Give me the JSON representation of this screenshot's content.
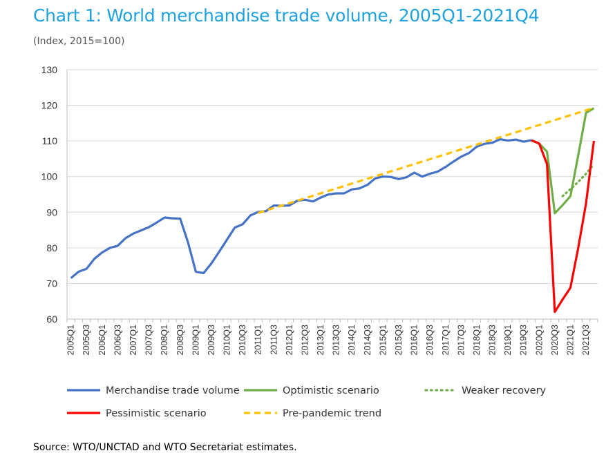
{
  "title": "Chart 1: World merchandise trade volume, 2005Q1-2021Q4",
  "subtitle": "(Index, 2015=100)",
  "source": "Source: WTO/UNCTAD and WTO Secretariat estimates.",
  "colors": {
    "merchandise": "#4472c4",
    "optimistic": "#70ad47",
    "weaker": "#70ad47",
    "pessimistic": "#ff0000",
    "trend": "#ffc000",
    "grid": "#d9d9d9",
    "axis": "#bfbfbf"
  },
  "chart_data": {
    "type": "line",
    "ylim": [
      60,
      130
    ],
    "yticks": [
      60,
      70,
      80,
      90,
      100,
      110,
      120,
      130
    ],
    "x": [
      "2005Q1",
      "2005Q2",
      "2005Q3",
      "2005Q4",
      "2006Q1",
      "2006Q2",
      "2006Q3",
      "2006Q4",
      "2007Q1",
      "2007Q2",
      "2007Q3",
      "2007Q4",
      "2008Q1",
      "2008Q2",
      "2008Q3",
      "2008Q4",
      "2009Q1",
      "2009Q2",
      "2009Q3",
      "2009Q4",
      "2010Q1",
      "2010Q2",
      "2010Q3",
      "2010Q4",
      "2011Q1",
      "2011Q2",
      "2011Q3",
      "2011Q4",
      "2012Q1",
      "2012Q2",
      "2012Q3",
      "2012Q4",
      "2013Q1",
      "2013Q2",
      "2013Q3",
      "2013Q4",
      "2014Q1",
      "2014Q2",
      "2014Q3",
      "2014Q4",
      "2015Q1",
      "2015Q2",
      "2015Q3",
      "2015Q4",
      "2016Q1",
      "2016Q2",
      "2016Q3",
      "2016Q4",
      "2017Q1",
      "2017Q2",
      "2017Q3",
      "2017Q4",
      "2018Q1",
      "2018Q2",
      "2018Q3",
      "2018Q4",
      "2019Q1",
      "2019Q2",
      "2019Q3",
      "2019Q4",
      "2020Q1",
      "2020Q2",
      "2020Q3",
      "2020Q4",
      "2021Q1",
      "2021Q2",
      "2021Q3",
      "2021Q4"
    ],
    "xtick_labels": [
      "2005Q1",
      "2005Q3",
      "2006Q1",
      "2006Q3",
      "2007Q1",
      "2007Q3",
      "2008Q1",
      "2008Q3",
      "2009Q1",
      "2009Q3",
      "2010Q1",
      "2010Q3",
      "2011Q1",
      "2011Q3",
      "2012Q1",
      "2012Q3",
      "2013Q1",
      "2013Q3",
      "2014Q1",
      "2014Q3",
      "2015Q1",
      "2015Q3",
      "2016Q1",
      "2016Q3",
      "2017Q1",
      "2017Q3",
      "2018Q1",
      "2018Q3",
      "2019Q1",
      "2019Q3",
      "2020Q1",
      "2020Q3",
      "2021Q1",
      "2021Q3"
    ],
    "series": [
      {
        "name": "Merchandise trade volume",
        "style": "solid",
        "x": [
          "2005Q1",
          "2005Q2",
          "2005Q3",
          "2005Q4",
          "2006Q1",
          "2006Q2",
          "2006Q3",
          "2006Q4",
          "2007Q1",
          "2007Q2",
          "2007Q3",
          "2007Q4",
          "2008Q1",
          "2008Q2",
          "2008Q3",
          "2008Q4",
          "2009Q1",
          "2009Q2",
          "2009Q3",
          "2009Q4",
          "2010Q1",
          "2010Q2",
          "2010Q3",
          "2010Q4",
          "2011Q1",
          "2011Q2",
          "2011Q3",
          "2011Q4",
          "2012Q1",
          "2012Q2",
          "2012Q3",
          "2012Q4",
          "2013Q1",
          "2013Q2",
          "2013Q3",
          "2013Q4",
          "2014Q1",
          "2014Q2",
          "2014Q3",
          "2014Q4",
          "2015Q1",
          "2015Q2",
          "2015Q3",
          "2015Q4",
          "2016Q1",
          "2016Q2",
          "2016Q3",
          "2016Q4",
          "2017Q1",
          "2017Q2",
          "2017Q3",
          "2017Q4",
          "2018Q1",
          "2018Q2",
          "2018Q3",
          "2018Q4",
          "2019Q1",
          "2019Q2",
          "2019Q3",
          "2019Q4"
        ],
        "values": [
          71.5,
          73.3,
          74.1,
          76.9,
          78.7,
          80.0,
          80.6,
          82.7,
          84.0,
          84.9,
          85.8,
          87.1,
          88.5,
          88.3,
          88.2,
          81.5,
          73.3,
          72.9,
          75.6,
          78.9,
          82.3,
          85.7,
          86.6,
          89.1,
          90.1,
          90.3,
          91.9,
          91.8,
          91.9,
          93.2,
          93.5,
          93.0,
          94.1,
          95.0,
          95.3,
          95.3,
          96.4,
          96.7,
          97.7,
          99.5,
          100.0,
          99.9,
          99.3,
          99.8,
          101.1,
          100.0,
          100.8,
          101.4,
          102.7,
          104.2,
          105.6,
          106.6,
          108.4,
          109.2,
          109.5,
          110.5,
          110.1,
          110.4,
          109.8,
          110.2
        ]
      },
      {
        "name": "Optimistic scenario",
        "style": "solid",
        "x": [
          "2019Q4",
          "2020Q1",
          "2020Q2",
          "2020Q3",
          "2020Q4",
          "2021Q1",
          "2021Q2",
          "2021Q3",
          "2021Q4"
        ],
        "values": [
          110.2,
          109.3,
          107.0,
          89.7,
          92.0,
          94.5,
          106.0,
          117.9,
          119.2
        ]
      },
      {
        "name": "Weaker recovery",
        "style": "dotted",
        "x": [
          "2020Q4",
          "2021Q1",
          "2021Q2",
          "2021Q3",
          "2021Q4"
        ],
        "values": [
          94.5,
          96.5,
          98.5,
          100.8,
          103.5
        ]
      },
      {
        "name": "Pessimistic scenario",
        "style": "solid",
        "x": [
          "2019Q4",
          "2020Q1",
          "2020Q2",
          "2020Q3",
          "2020Q4",
          "2021Q1",
          "2021Q2",
          "2021Q3",
          "2021Q4"
        ],
        "values": [
          110.2,
          109.3,
          103.5,
          62.0,
          65.5,
          68.8,
          80.0,
          92.5,
          110.0
        ]
      },
      {
        "name": "Pre-pandemic trend",
        "style": "dashed",
        "x": [
          "2011Q1",
          "2021Q4"
        ],
        "values": [
          89.8,
          119.3
        ]
      }
    ],
    "legend_rows": [
      [
        "Merchandise trade volume",
        "Optimistic scenario",
        "Weaker recovery"
      ],
      [
        "Pessimistic scenario",
        "Pre-pandemic trend"
      ]
    ],
    "legend_position": "bottom"
  }
}
